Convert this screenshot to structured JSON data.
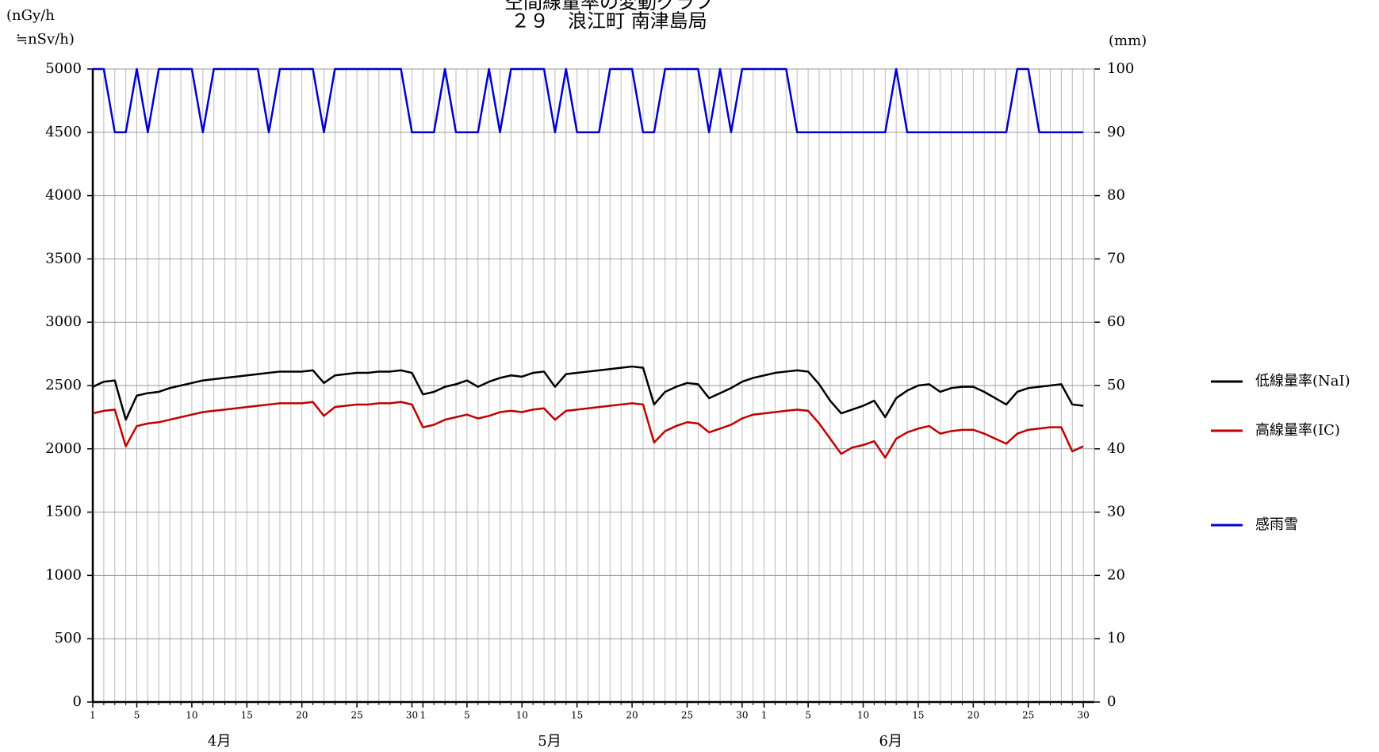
{
  "chart_data": {
    "type": "line",
    "title": "空間線量率の変動グラフ",
    "subtitle": "２９　浪江町 南津島局",
    "y_label": [
      "(nGy/h",
      "≒nSv/h)"
    ],
    "y2_label": "(mm)",
    "months": [
      "4月",
      "5月",
      "6月"
    ],
    "x": [
      0,
      1,
      2,
      3,
      4,
      5,
      6,
      7,
      8,
      9,
      10,
      11,
      12,
      13,
      14,
      15,
      16,
      17,
      18,
      19,
      20,
      21,
      22,
      23,
      24,
      25,
      26,
      27,
      28,
      29,
      30,
      31,
      32,
      33,
      34,
      35,
      36,
      37,
      38,
      39,
      40,
      41,
      42,
      43,
      44,
      45,
      46,
      47,
      48,
      49,
      50,
      51,
      52,
      53,
      54,
      55,
      56,
      57,
      58,
      59,
      60,
      61,
      62,
      63,
      64,
      65,
      66,
      67,
      68,
      69,
      70,
      71,
      72,
      73,
      74,
      75,
      76,
      77,
      78,
      79,
      80,
      81,
      82,
      83,
      84,
      85,
      86,
      87,
      88,
      89,
      90
    ],
    "xlim": [
      0,
      91
    ],
    "xticks": [
      {
        "value": 0,
        "label": "1"
      },
      {
        "value": 4,
        "label": "5"
      },
      {
        "value": 9,
        "label": "10"
      },
      {
        "value": 14,
        "label": "15"
      },
      {
        "value": 19,
        "label": "20"
      },
      {
        "value": 24,
        "label": "25"
      },
      {
        "value": 29,
        "label": "30"
      },
      {
        "value": 30,
        "label": "1"
      },
      {
        "value": 34,
        "label": "5"
      },
      {
        "value": 39,
        "label": "10"
      },
      {
        "value": 44,
        "label": "15"
      },
      {
        "value": 49,
        "label": "20"
      },
      {
        "value": 54,
        "label": "25"
      },
      {
        "value": 59,
        "label": "30"
      },
      {
        "value": 61,
        "label": "1"
      },
      {
        "value": 65,
        "label": "5"
      },
      {
        "value": 70,
        "label": "10"
      },
      {
        "value": 75,
        "label": "15"
      },
      {
        "value": 80,
        "label": "20"
      },
      {
        "value": 85,
        "label": "25"
      },
      {
        "value": 90,
        "label": "30"
      }
    ],
    "ylim": [
      0,
      5000
    ],
    "yticks": [
      0,
      500,
      1000,
      1500,
      2000,
      2500,
      3000,
      3500,
      4000,
      4500,
      5000
    ],
    "y2lim": [
      0,
      100
    ],
    "y2ticks": [
      0,
      10,
      20,
      30,
      40,
      50,
      60,
      70,
      80,
      90,
      100
    ],
    "grid": true,
    "legend": "right",
    "series": [
      {
        "name": "低線量率(NaI)",
        "color": "#000000",
        "values": [
          2490,
          2530,
          2540,
          2230,
          2420,
          2440,
          2450,
          2480,
          2500,
          2520,
          2540,
          2550,
          2560,
          2570,
          2580,
          2590,
          2600,
          2610,
          2610,
          2610,
          2620,
          2520,
          2580,
          2590,
          2600,
          2600,
          2610,
          2610,
          2620,
          2600,
          2430,
          2450,
          2490,
          2510,
          2540,
          2490,
          2530,
          2560,
          2580,
          2570,
          2600,
          2610,
          2490,
          2590,
          2600,
          2610,
          2620,
          2630,
          2640,
          2650,
          2640,
          2350,
          2450,
          2490,
          2520,
          2510,
          2400,
          2440,
          2480,
          2530,
          2560,
          2580,
          2600,
          2610,
          2620,
          2610,
          2510,
          2380,
          2280,
          2310,
          2340,
          2380,
          2250,
          2400,
          2460,
          2500,
          2510,
          2450,
          2480,
          2490,
          2490,
          2450,
          2400,
          2350,
          2450,
          2480,
          2490,
          2500,
          2510,
          2350,
          2340
        ]
      },
      {
        "name": "高線量率(IC)",
        "color": "#c00000",
        "values": [
          2280,
          2300,
          2310,
          2020,
          2180,
          2200,
          2210,
          2230,
          2250,
          2270,
          2290,
          2300,
          2310,
          2320,
          2330,
          2340,
          2350,
          2360,
          2360,
          2360,
          2370,
          2260,
          2330,
          2340,
          2350,
          2350,
          2360,
          2360,
          2370,
          2350,
          2170,
          2190,
          2230,
          2250,
          2270,
          2240,
          2260,
          2290,
          2300,
          2290,
          2310,
          2320,
          2230,
          2300,
          2310,
          2320,
          2330,
          2340,
          2350,
          2360,
          2350,
          2050,
          2140,
          2180,
          2210,
          2200,
          2130,
          2160,
          2190,
          2240,
          2270,
          2280,
          2290,
          2300,
          2310,
          2300,
          2200,
          2080,
          1960,
          2010,
          2030,
          2060,
          1930,
          2080,
          2130,
          2160,
          2180,
          2120,
          2140,
          2150,
          2150,
          2120,
          2080,
          2040,
          2120,
          2150,
          2160,
          2170,
          2170,
          1980,
          2020
        ]
      },
      {
        "name": "感雨雪",
        "color": "#0000cc",
        "axis": "y2",
        "values": [
          100,
          100,
          90,
          90,
          100,
          90,
          100,
          100,
          100,
          100,
          90,
          100,
          100,
          100,
          100,
          100,
          90,
          100,
          100,
          100,
          100,
          90,
          100,
          100,
          100,
          100,
          100,
          100,
          100,
          90,
          90,
          90,
          100,
          90,
          90,
          90,
          100,
          90,
          100,
          100,
          100,
          100,
          90,
          100,
          90,
          90,
          90,
          100,
          100,
          100,
          90,
          90,
          100,
          100,
          100,
          100,
          90,
          100,
          90,
          100,
          100,
          100,
          100,
          100,
          90,
          90,
          90,
          90,
          90,
          90,
          90,
          90,
          90,
          100,
          90,
          90,
          90,
          90,
          90,
          90,
          90,
          90,
          90,
          90,
          100,
          100,
          90,
          90,
          90,
          90,
          90
        ]
      }
    ]
  }
}
